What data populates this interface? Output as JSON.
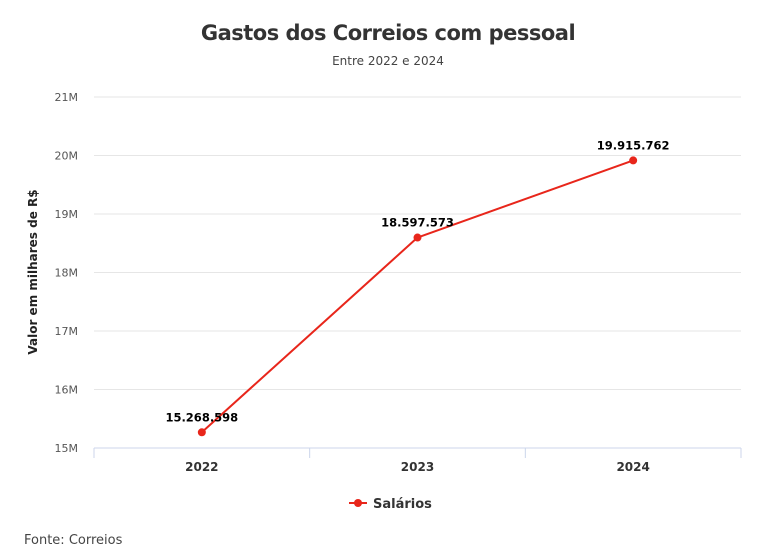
{
  "chart_data": {
    "type": "line",
    "title": "Gastos dos Correios com pessoal",
    "subtitle": "Entre 2022 e 2024",
    "xlabel": "",
    "ylabel": "Valor em milhares de R$",
    "categories": [
      "2022",
      "2023",
      "2024"
    ],
    "y_tick_labels": [
      "15M",
      "16M",
      "17M",
      "18M",
      "19M",
      "20M",
      "21M"
    ],
    "ylim": [
      15000000,
      21000000
    ],
    "grid": true,
    "legend_position": "bottom",
    "series": [
      {
        "name": "Salários",
        "values": [
          15268598,
          18597573,
          19915762
        ],
        "labels": [
          "15.268.598",
          "18.597.573",
          "19.915.762"
        ],
        "color": "#e8261b"
      }
    ],
    "source": "Fonte: Correios"
  }
}
